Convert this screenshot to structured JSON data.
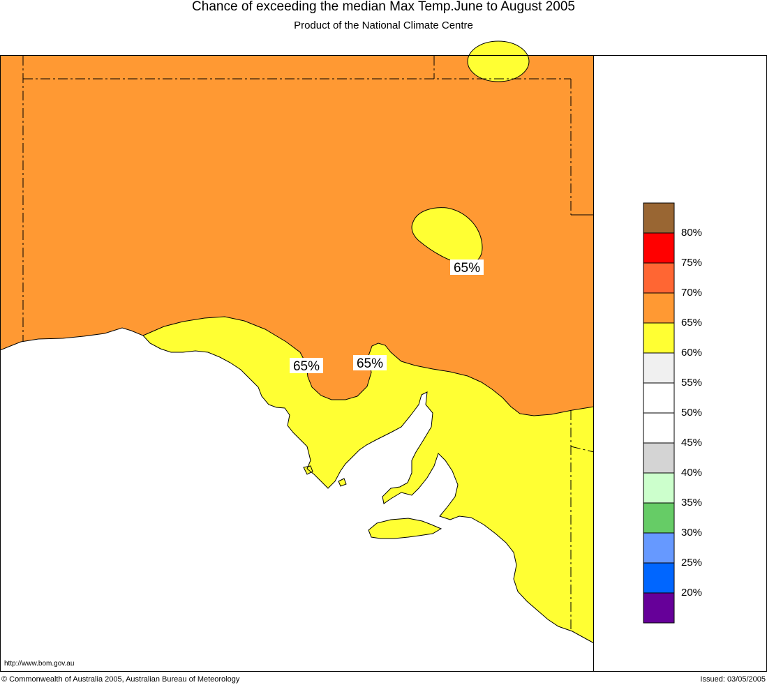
{
  "title": "Chance of exceeding the median Max Temp.June to August 2005",
  "subtitle": "Product of the National Climate Centre",
  "map": {
    "contour_labels": [
      "65%",
      "65%",
      "65%"
    ],
    "colors": {
      "above_65": "#ff9933",
      "60_to_65": "#ffff33",
      "sea": "#ffffff"
    }
  },
  "legend": {
    "items": [
      {
        "color": "#996633"
      },
      {
        "color": "#ff0000",
        "label": "80%"
      },
      {
        "color": "#ff6633",
        "label": "75%"
      },
      {
        "color": "#ff9933",
        "label": "70%"
      },
      {
        "color": "#ffff33",
        "label": "65%"
      },
      {
        "color": "#f0f0f0",
        "label": "60%"
      },
      {
        "color": "#ffffff",
        "label": "55%"
      },
      {
        "color": "#ffffff",
        "label": "50%"
      },
      {
        "color": "#d4d4d4",
        "label": "45%"
      },
      {
        "color": "#ccffcc",
        "label": "40%"
      },
      {
        "color": "#66cc66",
        "label": "35%"
      },
      {
        "color": "#6699ff",
        "label": "30%"
      },
      {
        "color": "#0066ff",
        "label": "25%"
      },
      {
        "color": "#660099",
        "label": "20%"
      }
    ]
  },
  "footer": {
    "url": "http://www.bom.gov.au",
    "copyright": "© Commonwealth of Australia 2005, Australian Bureau of Meteorology",
    "issued": "Issued: 03/05/2005"
  }
}
